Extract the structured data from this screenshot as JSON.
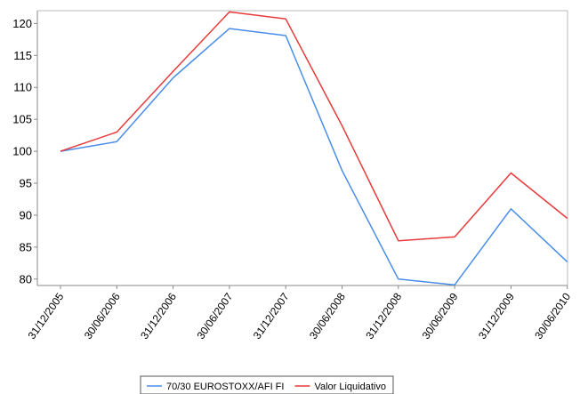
{
  "chart_data": {
    "type": "line",
    "categories": [
      "31/12/2005",
      "30/06/2006",
      "31/12/2006",
      "30/06/2007",
      "31/12/2007",
      "30/06/2008",
      "31/12/2008",
      "30/06/2009",
      "31/12/2009",
      "30/06/2010"
    ],
    "series": [
      {
        "name": "70/30 EUROSTOXX/AFI FI",
        "color": "#4a8de8",
        "values": [
          100,
          101.5,
          111.5,
          119.2,
          118.1,
          97,
          80,
          79.1,
          91,
          82.7
        ]
      },
      {
        "name": "Valor Liquidativo",
        "color": "#e83a3a",
        "values": [
          100,
          103,
          112.5,
          121.8,
          120.7,
          104,
          86,
          86.6,
          96.6,
          89.5
        ]
      }
    ],
    "yticks": [
      80,
      85,
      90,
      95,
      100,
      105,
      110,
      115,
      120
    ],
    "ylim": [
      79,
      122
    ],
    "xlabel": "",
    "ylabel": "",
    "title": "",
    "grid": false,
    "legend_position": "bottom-center"
  }
}
